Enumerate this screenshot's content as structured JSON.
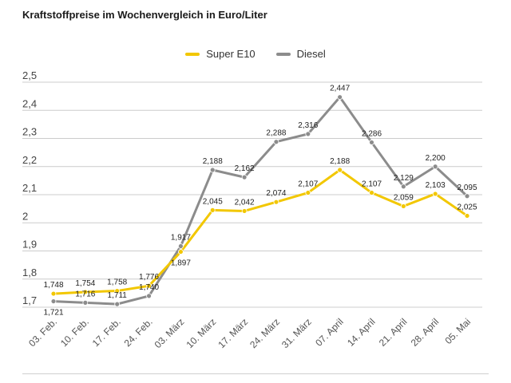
{
  "chart_data": {
    "type": "line",
    "title": "Kraftstoffpreise im Wochenvergleich in Euro/Liter",
    "categories": [
      "03. Feb.",
      "10. Feb.",
      "17. Feb.",
      "24. Feb.",
      "03. März",
      "10. März",
      "17. März",
      "24. März",
      "31. März",
      "07. April",
      "14. April",
      "21. April",
      "28. April",
      "05. Mai"
    ],
    "series": [
      {
        "name": "Super E10",
        "color": "#f2c700",
        "values": [
          1.748,
          1.754,
          1.758,
          1.776,
          1.897,
          2.045,
          2.042,
          2.074,
          2.107,
          2.188,
          2.107,
          2.059,
          2.103,
          2.025
        ],
        "labels": [
          "1,748",
          "1,754",
          "1,758",
          "1,776",
          "1,897",
          "2,045",
          "2,042",
          "2,074",
          "2,107",
          "2,188",
          "2,107",
          "2,059",
          "2,103",
          "2,025"
        ]
      },
      {
        "name": "Diesel",
        "color": "#8c8c8c",
        "values": [
          1.721,
          1.716,
          1.711,
          1.74,
          1.917,
          2.188,
          2.162,
          2.288,
          2.316,
          2.447,
          2.286,
          2.129,
          2.2,
          2.095
        ],
        "labels": [
          "1,721",
          "1,716",
          "1,711",
          "1,740",
          "1,917",
          "2,188",
          "2,162",
          "2,288",
          "2,316",
          "2,447",
          "2,286",
          "2,129",
          "2,200",
          "2,095"
        ]
      }
    ],
    "y_ticks": [
      1.7,
      1.8,
      1.9,
      2.0,
      2.1,
      2.2,
      2.3,
      2.4,
      2.5
    ],
    "y_tick_labels": [
      "1,7",
      "1,8",
      "1,9",
      "2",
      "2,1",
      "2,2",
      "2,3",
      "2,4",
      "2,5"
    ],
    "ylim": [
      1.7,
      2.5
    ],
    "grid": "horizontal",
    "legend": "top-center"
  }
}
